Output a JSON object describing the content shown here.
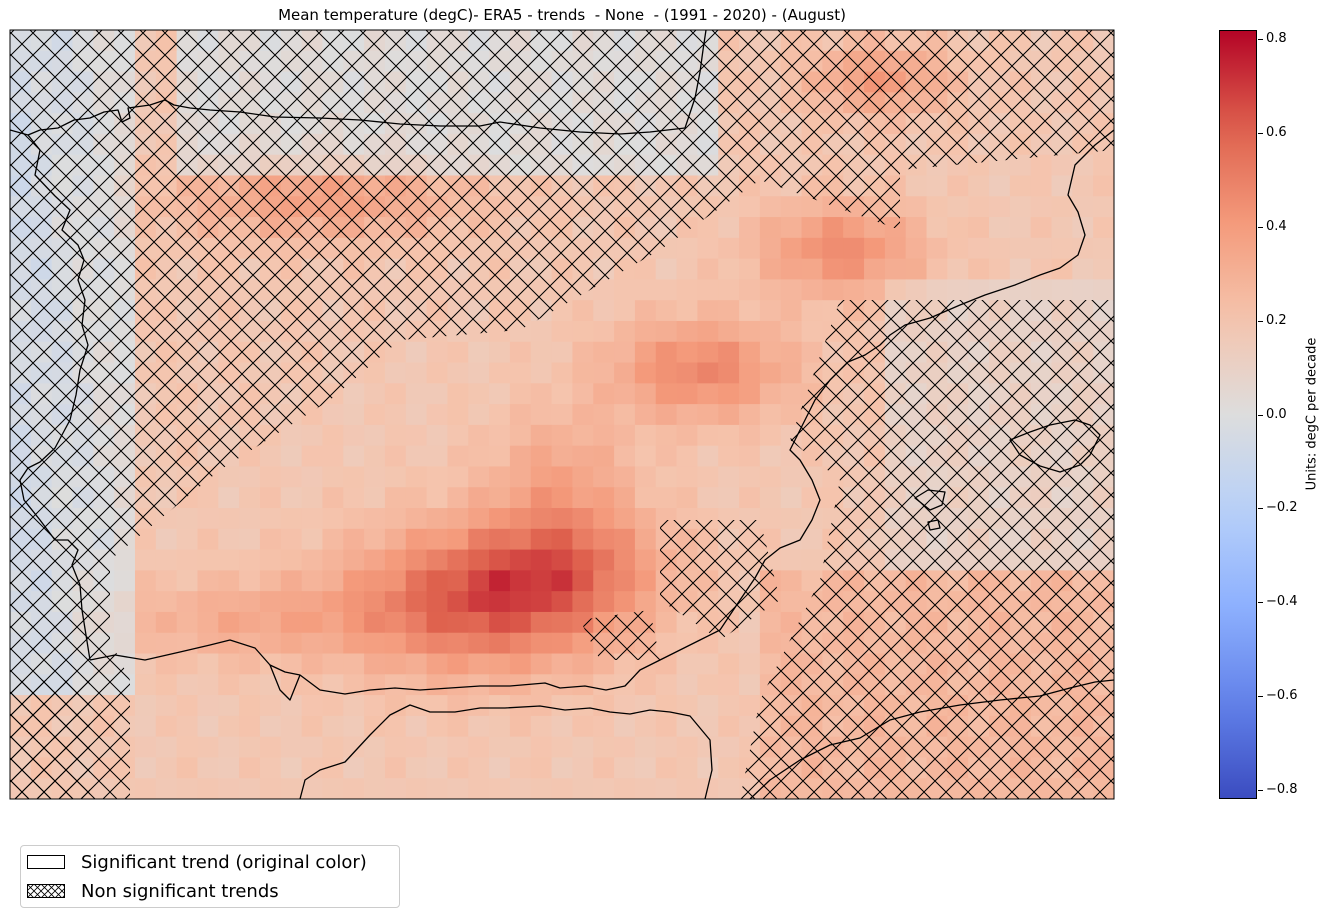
{
  "title": "Mean temperature (degC)- ERA5 - trends  - None  - (1991 - 2020) - (August)",
  "colorbar": {
    "label": "Units: degC per decade",
    "cmap": "coolwarm",
    "range": [
      -0.82,
      0.82
    ],
    "ticks": [
      {
        "value": 0.8,
        "label": "0.8"
      },
      {
        "value": 0.6,
        "label": "0.6"
      },
      {
        "value": 0.4,
        "label": "0.4"
      },
      {
        "value": 0.2,
        "label": "0.2"
      },
      {
        "value": 0.0,
        "label": "0.0"
      },
      {
        "value": -0.2,
        "label": "−0.2"
      },
      {
        "value": -0.4,
        "label": "−0.4"
      },
      {
        "value": -0.6,
        "label": "−0.6"
      },
      {
        "value": -0.8,
        "label": "−0.8"
      }
    ]
  },
  "legend": {
    "items": [
      {
        "label": "Significant trend (original color)",
        "pattern": "none"
      },
      {
        "label": "Non significant trends",
        "pattern": "crosshatch"
      }
    ]
  },
  "colors": {
    "coastline": "#000000",
    "hatch": "#000000",
    "cold": "#3b4cc0",
    "neutral": "#dddddd",
    "warm": "#b40426"
  }
}
